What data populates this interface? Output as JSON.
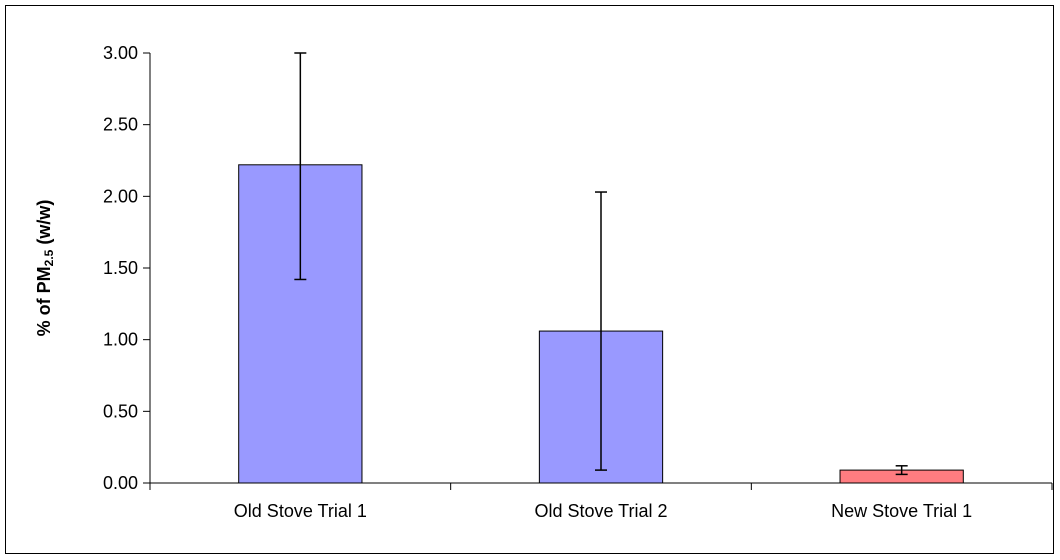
{
  "chart_data": {
    "type": "bar",
    "title": "",
    "xlabel": "",
    "ylabel": {
      "prefix": "% of PM",
      "subscript": "2.5",
      "suffix": " (w/w)"
    },
    "ylim": [
      0,
      3
    ],
    "yticks": [
      "0.00",
      "0.50",
      "1.00",
      "1.50",
      "2.00",
      "2.50",
      "3.00"
    ],
    "categories": [
      "Old Stove Trial 1",
      "Old Stove Trial 2",
      "New Stove Trial 1"
    ],
    "values": [
      2.22,
      1.06,
      0.09
    ],
    "error_low": [
      1.42,
      0.09,
      0.06
    ],
    "error_high": [
      3.0,
      2.03,
      0.12
    ],
    "colors": [
      "#9999ff",
      "#9999ff",
      "#ff7c80"
    ],
    "grid": false,
    "legend": "none"
  }
}
